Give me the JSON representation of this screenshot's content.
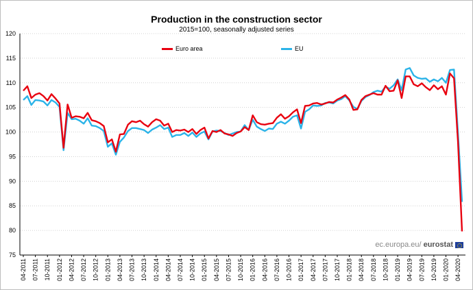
{
  "chart_data": {
    "type": "line",
    "title": "Production in the construction sector",
    "subtitle": "2015=100, seasonally adjusted series",
    "ylim": [
      75,
      120
    ],
    "yticks": [
      75,
      80,
      85,
      90,
      95,
      100,
      105,
      110,
      115,
      120
    ],
    "grid": true,
    "legend": "top",
    "x_tick_labels": [
      "04-2011",
      "07-2011",
      "10-2011",
      "01-2012",
      "04-2012",
      "07-2012",
      "10-2012",
      "01-2013",
      "04-2013",
      "07-2013",
      "10-2013",
      "01-2014",
      "04-2014",
      "07-2014",
      "10-2014",
      "01-2015",
      "04-2015",
      "07-2015",
      "10-2015",
      "01-2016",
      "04-2016",
      "07-2016",
      "10-2016",
      "01-2017",
      "04-2017",
      "07-2017",
      "10-2017",
      "01-2018",
      "04-2018",
      "07-2018",
      "10-2018",
      "01-2019",
      "04-2019",
      "07-2019",
      "10-2019",
      "01-2020",
      "04-2020"
    ],
    "series": [
      {
        "name": "Euro area",
        "color": "#e8000f",
        "values": [
          108.4,
          109.3,
          106.9,
          107.6,
          107.9,
          107.3,
          106.4,
          107.7,
          106.8,
          105.8,
          96.8,
          105.6,
          102.9,
          103.2,
          103.1,
          102.8,
          103.9,
          102.4,
          102.2,
          101.8,
          101.2,
          97.9,
          98.5,
          96.0,
          99.5,
          99.6,
          101.5,
          102.2,
          102.0,
          102.3,
          101.6,
          101.1,
          102.0,
          102.6,
          102.3,
          101.3,
          101.7,
          100.0,
          100.4,
          100.3,
          100.5,
          100.0,
          100.6,
          99.6,
          100.4,
          100.9,
          98.7,
          100.2,
          100.0,
          100.4,
          99.7,
          99.5,
          99.2,
          99.8,
          100.1,
          101.0,
          100.4,
          103.4,
          102.0,
          101.6,
          101.5,
          101.7,
          101.8,
          102.9,
          103.6,
          102.7,
          103.2,
          104.0,
          104.6,
          101.8,
          105.3,
          105.4,
          105.8,
          105.9,
          105.6,
          105.8,
          106.1,
          106.0,
          106.6,
          107.0,
          107.5,
          106.6,
          104.5,
          104.6,
          106.5,
          107.3,
          107.6,
          107.9,
          107.6,
          107.6,
          109.4,
          108.3,
          108.4,
          110.5,
          106.9,
          111.3,
          111.3,
          109.7,
          109.3,
          109.9,
          109.1,
          108.5,
          109.5,
          108.7,
          109.3,
          107.6,
          111.9,
          110.9,
          98.0,
          79.8
        ]
      },
      {
        "name": "EU",
        "color": "#2bb3e8",
        "values": [
          106.5,
          107.3,
          105.5,
          106.5,
          106.4,
          106.2,
          105.4,
          106.5,
          106.0,
          105.1,
          96.3,
          103.9,
          102.6,
          102.7,
          102.3,
          101.7,
          102.8,
          101.3,
          101.2,
          100.8,
          100.2,
          97.0,
          97.7,
          95.4,
          98.0,
          98.9,
          100.2,
          100.8,
          100.8,
          100.6,
          100.4,
          99.8,
          100.5,
          100.9,
          101.4,
          100.6,
          100.9,
          99.0,
          99.4,
          99.4,
          99.8,
          99.2,
          99.9,
          99.0,
          99.7,
          100.1,
          98.5,
          100.1,
          100.3,
          100.2,
          99.8,
          99.4,
          99.7,
          100.0,
          100.1,
          101.4,
          100.4,
          102.5,
          101.1,
          100.6,
          100.2,
          100.7,
          100.6,
          101.7,
          102.1,
          101.7,
          102.3,
          103.1,
          103.4,
          100.7,
          104.1,
          104.6,
          105.4,
          105.3,
          105.4,
          105.9,
          106.0,
          105.8,
          106.4,
          106.7,
          107.3,
          106.4,
          105.1,
          104.7,
          106.3,
          107.1,
          107.5,
          108.1,
          108.4,
          108.2,
          109.2,
          108.8,
          109.5,
          110.7,
          108.5,
          112.7,
          113.0,
          111.5,
          111.0,
          110.8,
          110.9,
          110.2,
          110.7,
          110.3,
          111.0,
          110.0,
          112.6,
          112.7,
          99.8,
          85.8
        ]
      }
    ]
  },
  "source_credit": {
    "prefix": "ec.europa.eu/",
    "brand": "eurostat"
  }
}
